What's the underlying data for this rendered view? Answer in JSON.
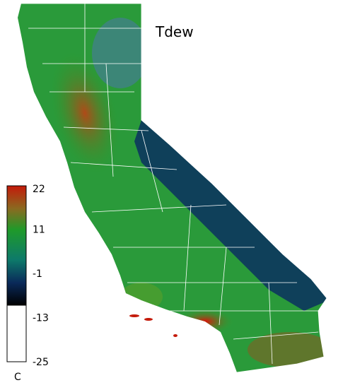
{
  "title": "Tdew",
  "colorbar": {
    "ticks": [
      22,
      11,
      -1,
      -13,
      -25
    ],
    "unit": "C"
  }
}
